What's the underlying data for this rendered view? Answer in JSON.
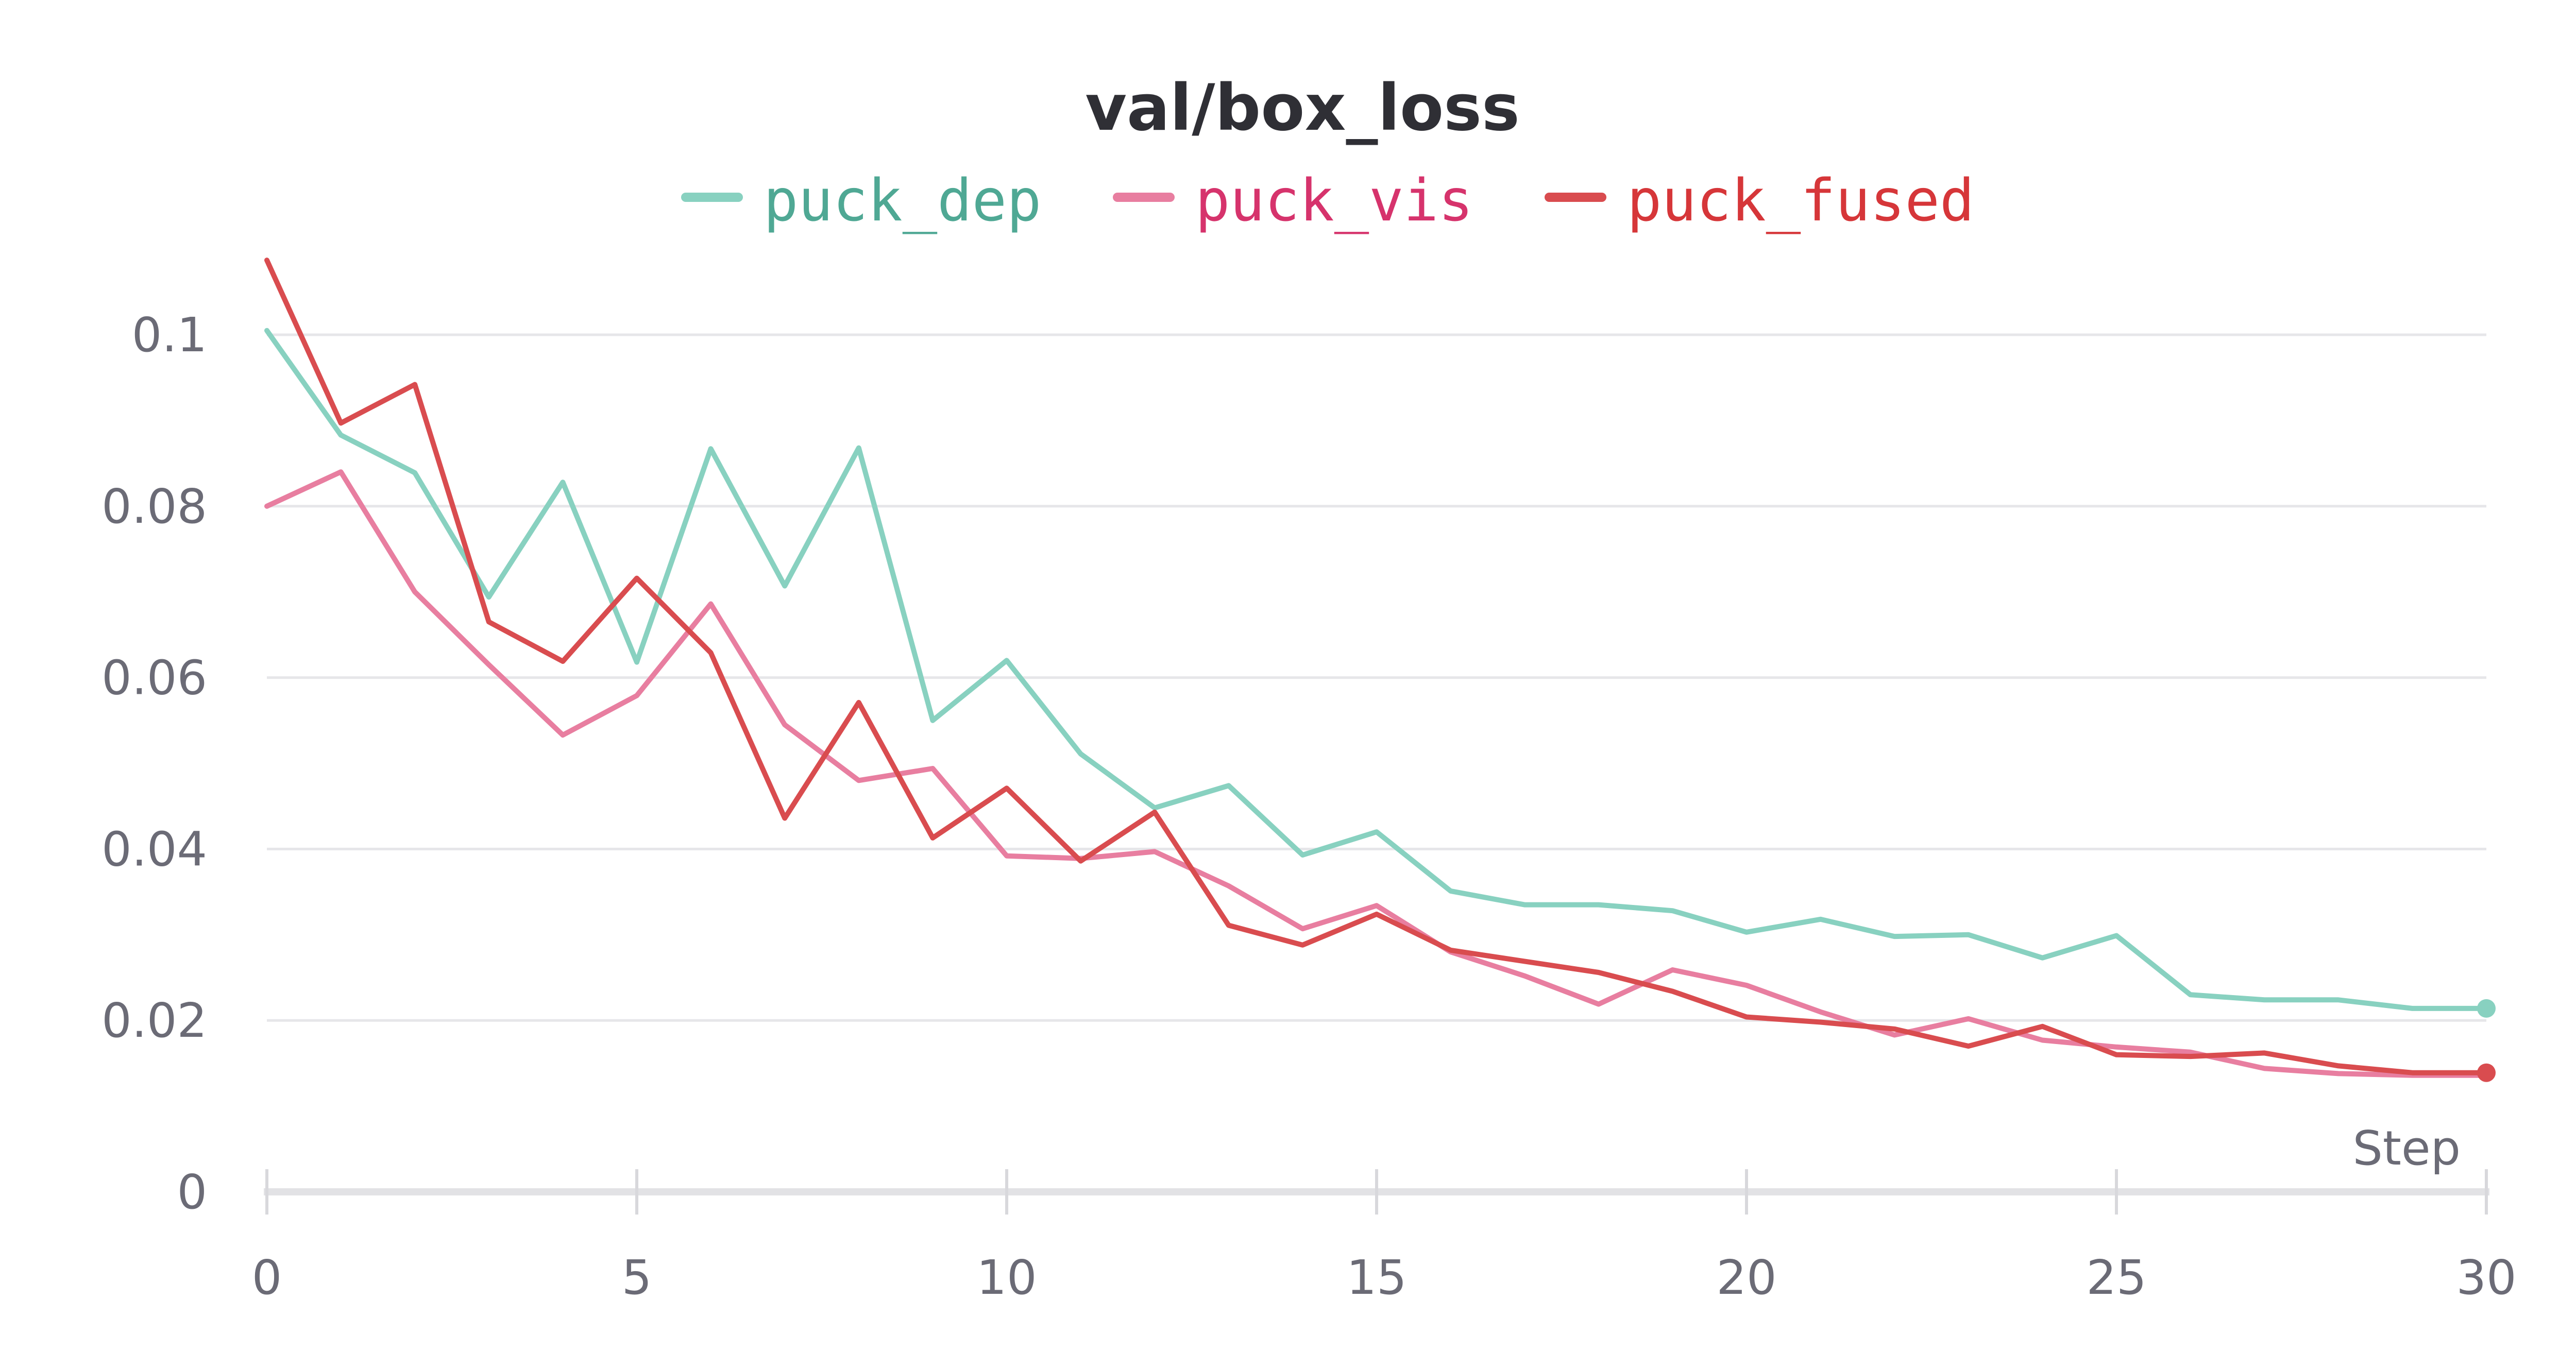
{
  "chart_data": {
    "type": "line",
    "title": "val/box_loss",
    "xlabel": "Step",
    "ylabel": "",
    "xlim": [
      0,
      30
    ],
    "ylim": [
      0,
      0.1
    ],
    "x_ticks": [
      0,
      5,
      10,
      15,
      20,
      25,
      30
    ],
    "y_ticks": [
      0,
      0.02,
      0.04,
      0.06,
      0.08,
      0.1
    ],
    "y_tick_labels": [
      "0",
      "0.02",
      "0.04",
      "0.06",
      "0.08",
      "0.1"
    ],
    "grid": true,
    "legend_position": "top-center",
    "x": [
      0,
      1,
      2,
      3,
      4,
      5,
      6,
      7,
      8,
      9,
      10,
      11,
      12,
      13,
      14,
      15,
      16,
      17,
      18,
      19,
      20,
      21,
      22,
      23,
      24,
      25,
      26,
      27,
      28,
      29,
      30
    ],
    "series": [
      {
        "name": "puck_dep",
        "color": "#88d1c0",
        "label_color": "#4fa894",
        "values": [
          0.1005,
          0.0883,
          0.0839,
          0.0694,
          0.0828,
          0.0618,
          0.0867,
          0.0707,
          0.0868,
          0.055,
          0.062,
          0.0511,
          0.0448,
          0.0474,
          0.0393,
          0.042,
          0.0351,
          0.0335,
          0.0335,
          0.0328,
          0.0303,
          0.0318,
          0.0298,
          0.03,
          0.0273,
          0.0299,
          0.023,
          0.0224,
          0.0224,
          0.0214,
          0.0214
        ]
      },
      {
        "name": "puck_vis",
        "color": "#e87ea0",
        "label_color": "#d6336c",
        "values": [
          0.08,
          0.084,
          0.07,
          0.0615,
          0.0533,
          0.0579,
          0.0686,
          0.0545,
          0.048,
          0.0494,
          0.0392,
          0.0389,
          0.0397,
          0.0357,
          0.0307,
          0.0334,
          0.028,
          0.0252,
          0.0219,
          0.0259,
          0.0241,
          0.021,
          0.0183,
          0.0202,
          0.0177,
          0.0169,
          0.0163,
          0.0144,
          0.0138,
          0.0136,
          0.0136
        ]
      },
      {
        "name": "puck_fused",
        "color": "#d94c4f",
        "label_color": "#d63639",
        "values": [
          0.1087,
          0.0897,
          0.0942,
          0.0665,
          0.0619,
          0.0716,
          0.0629,
          0.0436,
          0.0571,
          0.0413,
          0.0471,
          0.0386,
          0.0443,
          0.0311,
          0.0288,
          0.0324,
          0.0282,
          0.0269,
          0.0256,
          0.0234,
          0.0204,
          0.0198,
          0.019,
          0.017,
          0.0193,
          0.016,
          0.0158,
          0.0162,
          0.0147,
          0.0139,
          0.0139
        ]
      }
    ]
  }
}
